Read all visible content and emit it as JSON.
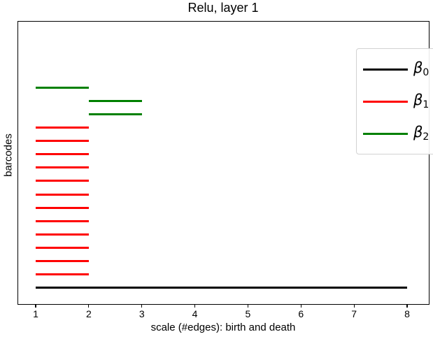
{
  "title": "Relu, layer 1",
  "axes": {
    "xlabel": "scale (#edges): birth and death",
    "ylabel": "barcodes",
    "x_tick_labels": [
      "1",
      "2",
      "3",
      "4",
      "5",
      "6",
      "7",
      "8"
    ]
  },
  "legend": {
    "entries": [
      {
        "symbol": "β",
        "subscript": "0",
        "color": "#000000"
      },
      {
        "symbol": "β",
        "subscript": "1",
        "color": "#ff0000"
      },
      {
        "symbol": "β",
        "subscript": "2",
        "color": "#008000"
      }
    ]
  },
  "chart_data": {
    "type": "barcode",
    "title": "Relu, layer 1",
    "xlabel": "scale (#edges): birth and death",
    "ylabel": "barcodes",
    "xlim": [
      0.65,
      8.35
    ],
    "x_tick_values": [
      1,
      2,
      3,
      4,
      5,
      6,
      7,
      8
    ],
    "grid": false,
    "legend_position": "upper right",
    "series_colors": {
      "beta0": "#000000",
      "beta1": "#ff0000",
      "beta2": "#008000"
    },
    "bars_top_to_bottom": [
      {
        "betti": 2,
        "birth": 1,
        "death": 2
      },
      {
        "betti": 2,
        "birth": 2,
        "death": 3
      },
      {
        "betti": 2,
        "birth": 2,
        "death": 3
      },
      {
        "betti": 1,
        "birth": 1,
        "death": 2
      },
      {
        "betti": 1,
        "birth": 1,
        "death": 2
      },
      {
        "betti": 1,
        "birth": 1,
        "death": 2
      },
      {
        "betti": 1,
        "birth": 1,
        "death": 2
      },
      {
        "betti": 1,
        "birth": 1,
        "death": 2
      },
      {
        "betti": 1,
        "birth": 1,
        "death": 2
      },
      {
        "betti": 1,
        "birth": 1,
        "death": 2
      },
      {
        "betti": 1,
        "birth": 1,
        "death": 2
      },
      {
        "betti": 1,
        "birth": 1,
        "death": 2
      },
      {
        "betti": 1,
        "birth": 1,
        "death": 2
      },
      {
        "betti": 1,
        "birth": 1,
        "death": 2
      },
      {
        "betti": 1,
        "birth": 1,
        "death": 2
      },
      {
        "betti": 0,
        "birth": 1,
        "death": 8
      }
    ]
  }
}
